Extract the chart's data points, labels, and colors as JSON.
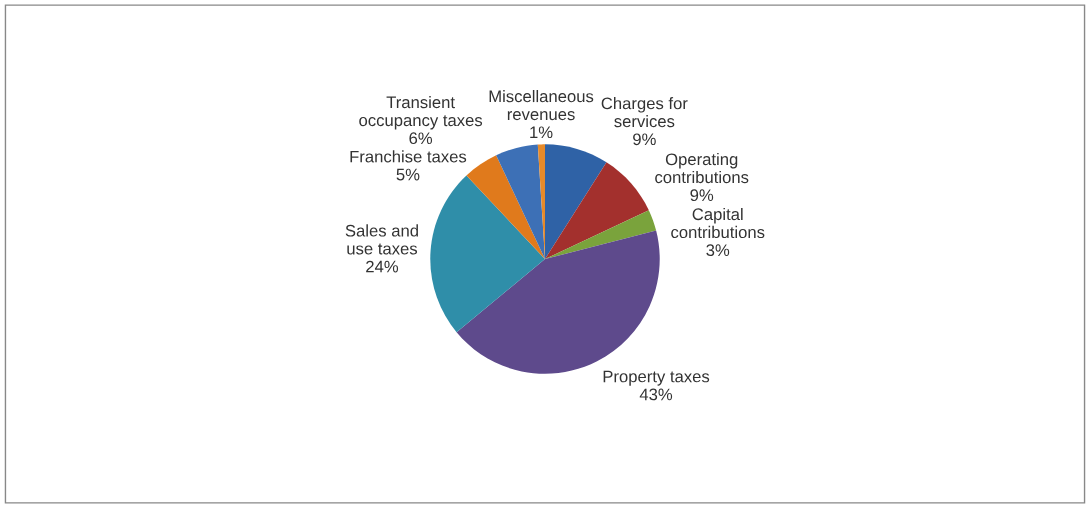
{
  "chart_data": {
    "type": "pie",
    "categories": [
      "Charges for services",
      "Operating contributions",
      "Capital contributions",
      "Property taxes",
      "Sales and use taxes",
      "Franchise taxes",
      "Transient occupancy taxes",
      "Miscellaneous revenues"
    ],
    "values": [
      9,
      9,
      3,
      43,
      24,
      5,
      6,
      1
    ],
    "value_labels": [
      "9%",
      "9%",
      "3%",
      "43%",
      "24%",
      "5%",
      "6%",
      "1%"
    ],
    "colors": [
      "#2f62a6",
      "#a3302d",
      "#7aa33c",
      "#5e4a8c",
      "#2f8ea9",
      "#e07a1c",
      "#3d70b6",
      "#e68a2a"
    ],
    "legend": false
  }
}
